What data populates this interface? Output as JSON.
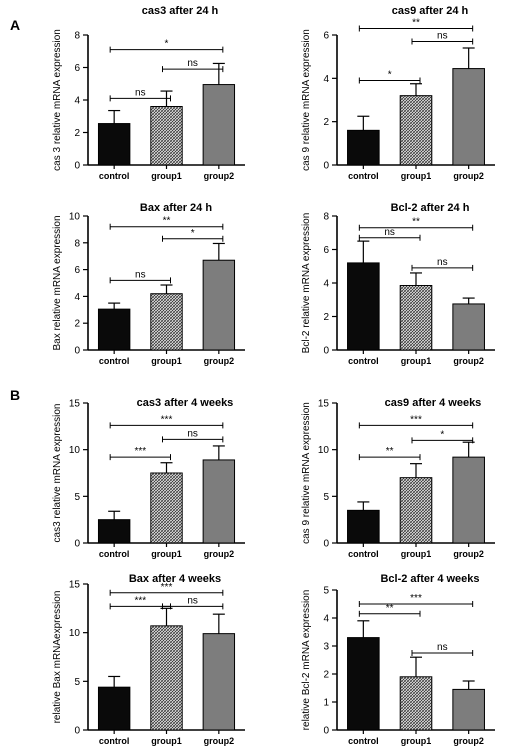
{
  "panel_labels": [
    "A",
    "B"
  ],
  "colors": {
    "control": "#0a0a0a",
    "group1": "#8c8c8c",
    "group2": "#7a7a7a",
    "axis": "#000000"
  },
  "chart_data": [
    {
      "type": "bar",
      "title": "cas3 after 24 h",
      "ylabel": "cas 3 relative mRNA expression",
      "categories": [
        "control",
        "group1",
        "group2"
      ],
      "values": [
        2.55,
        3.6,
        4.95
      ],
      "errors": [
        0.8,
        0.95,
        1.3
      ],
      "ylim": [
        0,
        8
      ],
      "yticks": [
        0,
        2,
        4,
        6,
        8
      ],
      "significance": [
        {
          "from": 1,
          "to": 2,
          "label": "ns",
          "y": 5.9
        },
        {
          "from": 0,
          "to": 1,
          "label": "ns",
          "y": 4.1
        },
        {
          "from": 0,
          "to": 2,
          "label": "*",
          "y": 7.1
        }
      ]
    },
    {
      "type": "bar",
      "title": "cas9 after 24 h",
      "ylabel": "cas 9 relative mRNA expression",
      "categories": [
        "control",
        "group1",
        "group2"
      ],
      "values": [
        1.6,
        3.2,
        4.45
      ],
      "errors": [
        0.65,
        0.55,
        0.95
      ],
      "ylim": [
        0,
        6
      ],
      "yticks": [
        0,
        2,
        4,
        6
      ],
      "significance": [
        {
          "from": 0,
          "to": 1,
          "label": "*",
          "y": 3.9
        },
        {
          "from": 1,
          "to": 2,
          "label": "ns",
          "y": 5.7
        },
        {
          "from": 0,
          "to": 2,
          "label": "**",
          "y": 6.3
        }
      ]
    },
    {
      "type": "bar",
      "title": "Bax after 24 h",
      "ylabel": "Bax relative mRNA expression",
      "categories": [
        "control",
        "group1",
        "group2"
      ],
      "values": [
        3.05,
        4.2,
        6.7
      ],
      "errors": [
        0.45,
        0.65,
        1.25
      ],
      "ylim": [
        0,
        10
      ],
      "yticks": [
        0,
        2,
        4,
        6,
        8,
        10
      ],
      "significance": [
        {
          "from": 0,
          "to": 1,
          "label": "ns",
          "y": 5.2
        },
        {
          "from": 1,
          "to": 2,
          "label": "*",
          "y": 8.3
        },
        {
          "from": 0,
          "to": 2,
          "label": "**",
          "y": 9.2
        }
      ]
    },
    {
      "type": "bar",
      "title": "Bcl-2 after 24 h",
      "ylabel": "Bcl-2 relative mRNA expression",
      "categories": [
        "control",
        "group1",
        "group2"
      ],
      "values": [
        5.2,
        3.85,
        2.75
      ],
      "errors": [
        1.3,
        0.75,
        0.35
      ],
      "ylim": [
        0,
        8
      ],
      "yticks": [
        0,
        2,
        4,
        6,
        8
      ],
      "significance": [
        {
          "from": 0,
          "to": 1,
          "label": "ns",
          "y": 6.7
        },
        {
          "from": 1,
          "to": 2,
          "label": "ns",
          "y": 4.9
        },
        {
          "from": 0,
          "to": 2,
          "label": "**",
          "y": 7.3
        }
      ]
    },
    {
      "type": "bar",
      "title": "cas3 after 4 weeks",
      "ylabel": "cas3 relative mRNA expression",
      "categories": [
        "control",
        "group1",
        "group2"
      ],
      "values": [
        2.5,
        7.5,
        8.9
      ],
      "errors": [
        0.9,
        1.1,
        1.5
      ],
      "ylim": [
        0,
        15
      ],
      "yticks": [
        0,
        5,
        10,
        15
      ],
      "significance": [
        {
          "from": 0,
          "to": 1,
          "label": "***",
          "y": 9.2
        },
        {
          "from": 1,
          "to": 2,
          "label": "ns",
          "y": 11.1
        },
        {
          "from": 0,
          "to": 2,
          "label": "***",
          "y": 12.6
        }
      ]
    },
    {
      "type": "bar",
      "title": "cas9 after 4 weeks",
      "ylabel": "cas 9 relative mRNA expression",
      "categories": [
        "control",
        "group1",
        "group2"
      ],
      "values": [
        3.5,
        7.0,
        9.2
      ],
      "errors": [
        0.9,
        1.5,
        1.6
      ],
      "ylim": [
        0,
        15
      ],
      "yticks": [
        0,
        5,
        10,
        15
      ],
      "significance": [
        {
          "from": 0,
          "to": 1,
          "label": "**",
          "y": 9.2
        },
        {
          "from": 1,
          "to": 2,
          "label": "*",
          "y": 11.0
        },
        {
          "from": 0,
          "to": 2,
          "label": "***",
          "y": 12.6
        }
      ]
    },
    {
      "type": "bar",
      "title": "Bax after 4 weeks",
      "ylabel": "relative Bax mRNAexpression",
      "categories": [
        "control",
        "group1",
        "group2"
      ],
      "values": [
        4.4,
        10.7,
        9.9
      ],
      "errors": [
        1.1,
        1.8,
        2.0
      ],
      "ylim": [
        0,
        15
      ],
      "yticks": [
        0,
        5,
        10,
        15
      ],
      "significance": [
        {
          "from": 0,
          "to": 1,
          "label": "***",
          "y": 12.7
        },
        {
          "from": 1,
          "to": 2,
          "label": "ns",
          "y": 12.7
        },
        {
          "from": 0,
          "to": 2,
          "label": "***",
          "y": 14.1
        }
      ]
    },
    {
      "type": "bar",
      "title": "Bcl-2 after 4 weeks",
      "ylabel": "relative Bcl-2 mRNA expression",
      "categories": [
        "control",
        "group1",
        "group2"
      ],
      "values": [
        3.3,
        1.9,
        1.45
      ],
      "errors": [
        0.6,
        0.7,
        0.3
      ],
      "ylim": [
        0,
        5
      ],
      "yticks": [
        0,
        1,
        2,
        3,
        4,
        5
      ],
      "significance": [
        {
          "from": 0,
          "to": 1,
          "label": "**",
          "y": 4.15
        },
        {
          "from": 1,
          "to": 2,
          "label": "ns",
          "y": 2.75
        },
        {
          "from": 0,
          "to": 2,
          "label": "***",
          "y": 4.5
        }
      ]
    }
  ]
}
